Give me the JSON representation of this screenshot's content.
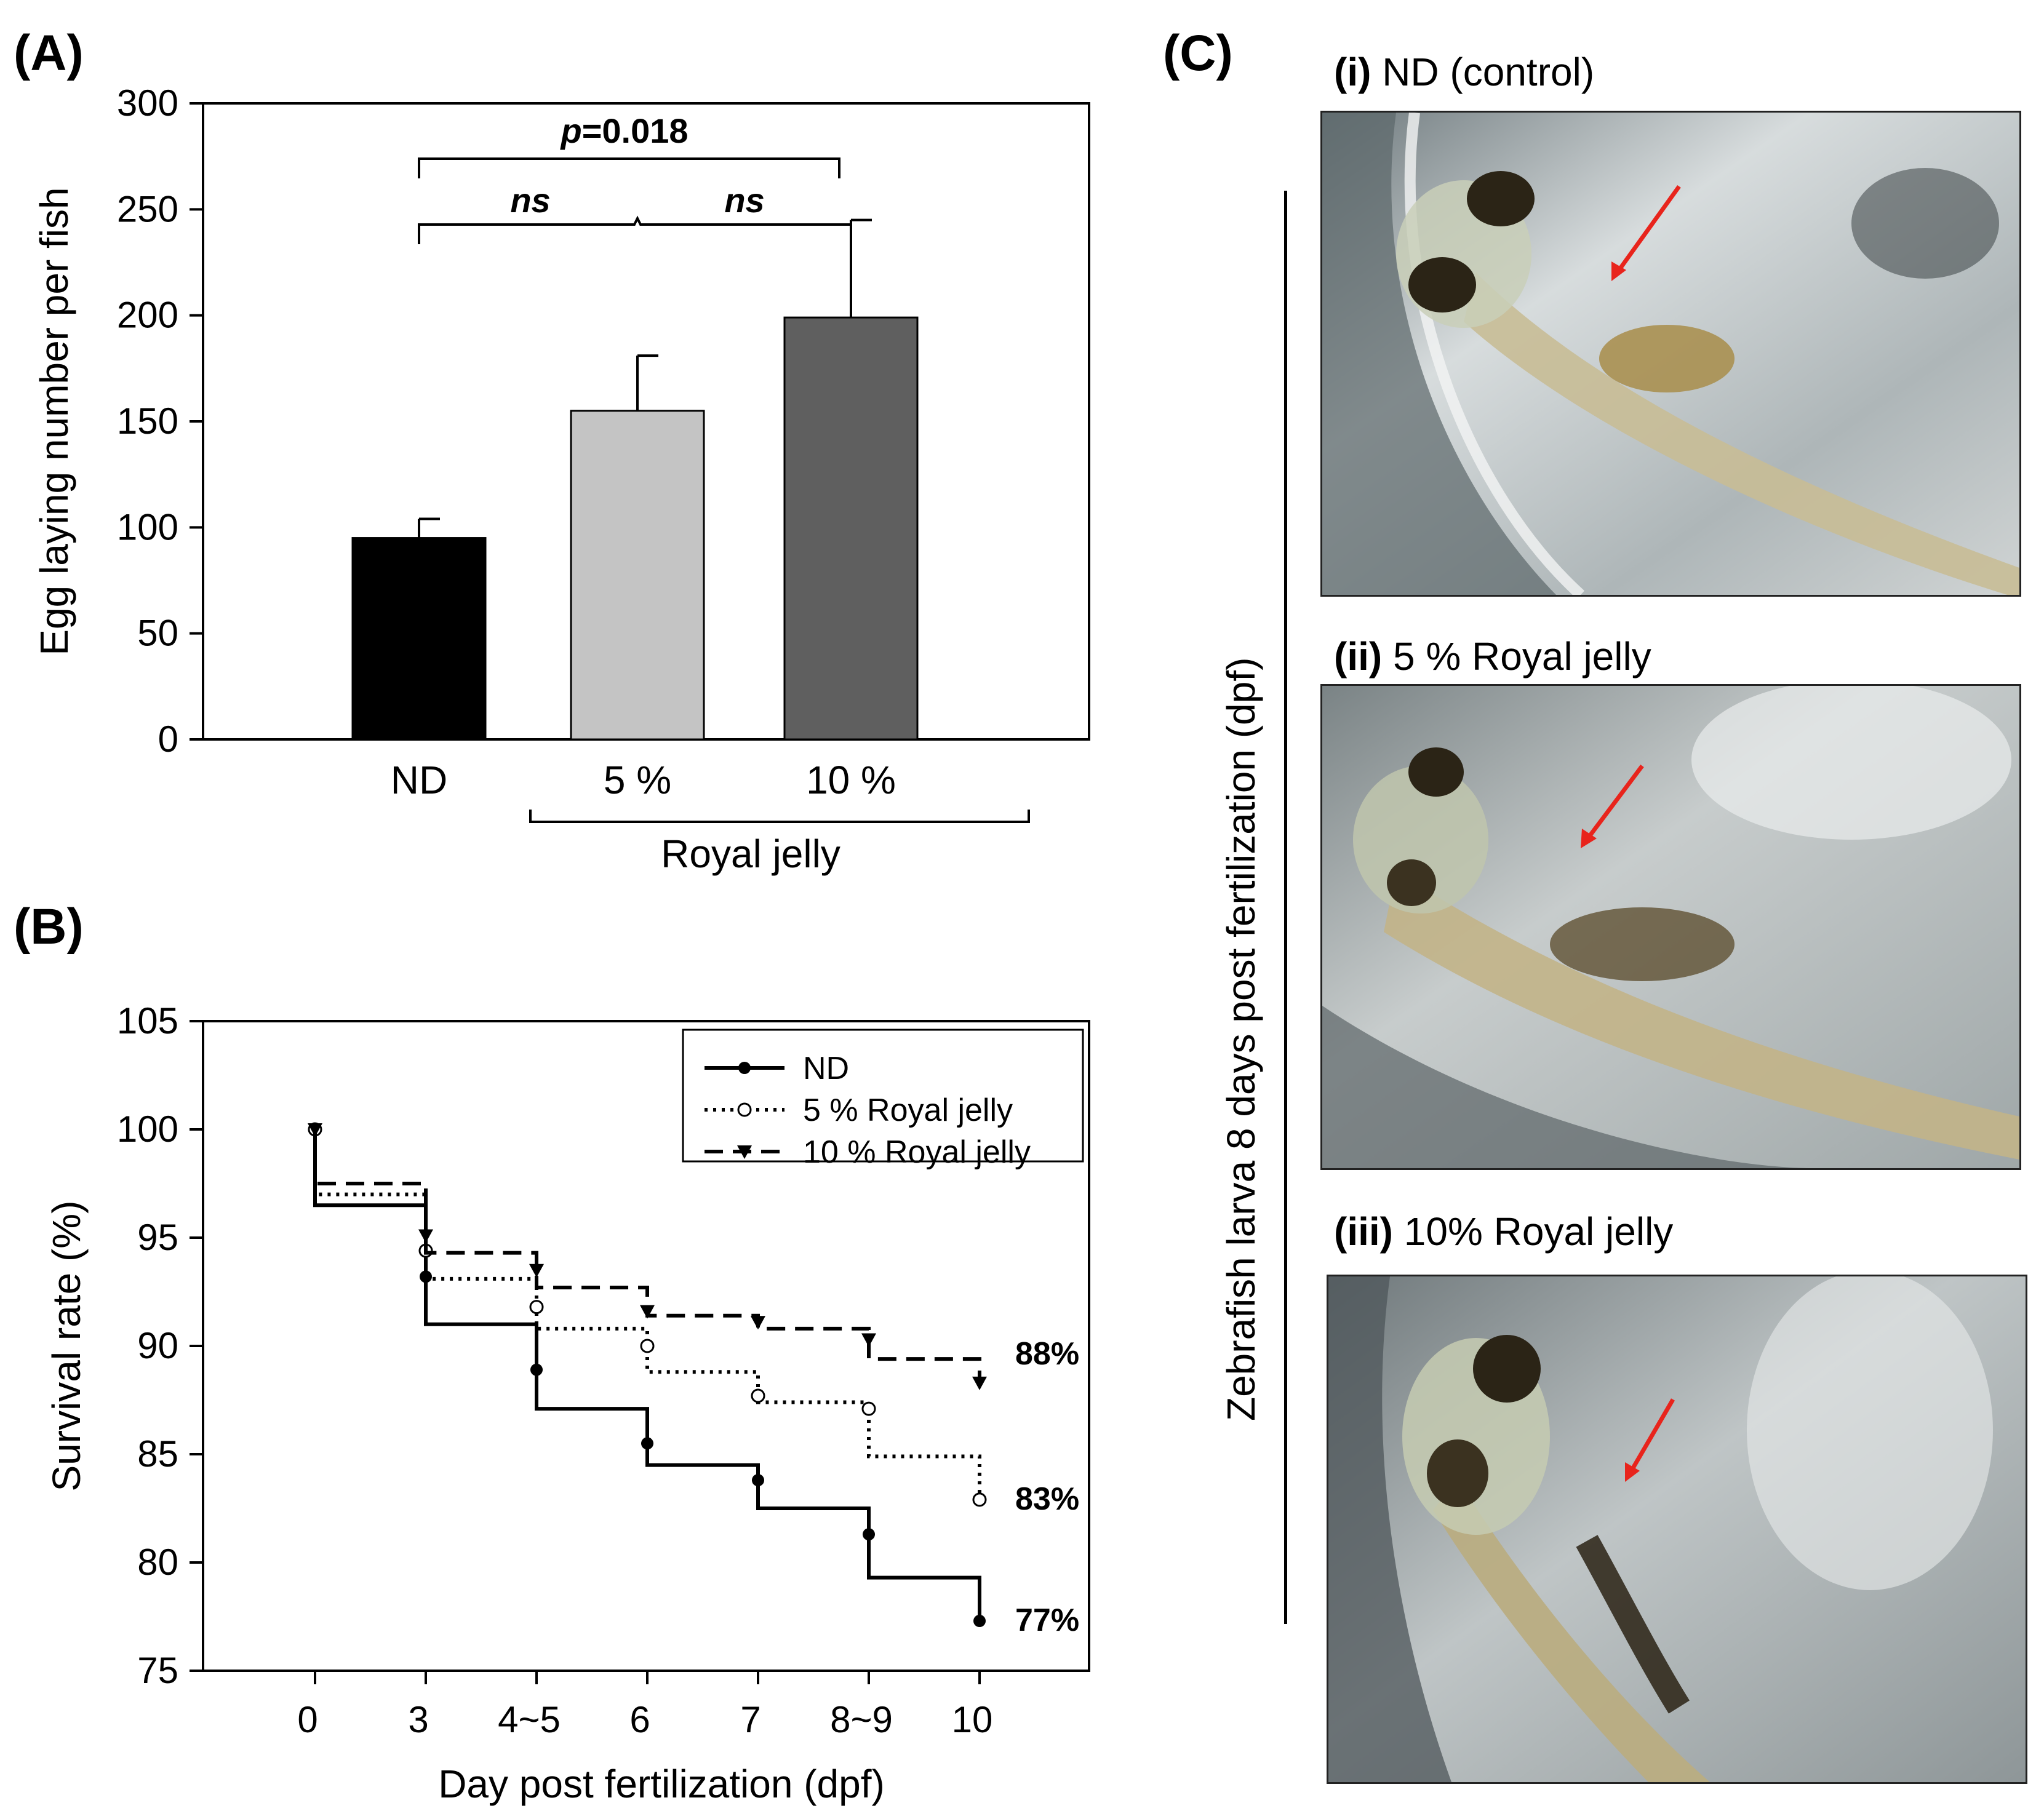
{
  "figure": {
    "panel_a_label": "(A)",
    "panel_b_label": "(B)",
    "panel_c_label": "(C)"
  },
  "chart_data": [
    {
      "id": "A",
      "type": "bar",
      "ylabel": "Egg laying number per fish",
      "ylim": [
        0,
        300
      ],
      "yticks": [
        "0",
        "50",
        "100",
        "150",
        "200",
        "250",
        "300"
      ],
      "ytick_values": [
        0,
        50,
        100,
        150,
        200,
        250,
        300
      ],
      "categories": [
        "ND",
        "5 %",
        "10 %"
      ],
      "values": [
        95,
        155,
        199
      ],
      "errors": [
        9,
        26,
        46
      ],
      "colors": [
        "#000000",
        "#c4c4c4",
        "#5f5f5f"
      ],
      "group_label": "Royal jelly",
      "annotations": {
        "ns_left": "ns",
        "ns_right": "ns",
        "p_prefix": "p",
        "p_value": "=0.018"
      }
    },
    {
      "id": "B",
      "type": "line",
      "xlabel": "Day post fertilization (dpf)",
      "ylabel": "Survival rate (%)",
      "ylim": [
        75,
        105
      ],
      "yticks": [
        "75",
        "80",
        "85",
        "90",
        "95",
        "100",
        "105"
      ],
      "ytick_values": [
        75,
        80,
        85,
        90,
        95,
        100,
        105
      ],
      "x_labels": [
        "0",
        "3",
        "4~5",
        "6",
        "7",
        "8~9",
        "10"
      ],
      "series": [
        {
          "name": "ND",
          "style": "solid",
          "marker": "filled-circle",
          "steps": [
            96.5,
            91.0,
            87.1,
            84.5,
            82.5,
            79.3
          ],
          "points": [
            100,
            93.2,
            88.9,
            85.5,
            83.8,
            81.3,
            77.3
          ],
          "end_label": "77%"
        },
        {
          "name": "5 % Royal jelly",
          "style": "dotted",
          "marker": "open-circle",
          "steps": [
            97.0,
            93.1,
            90.8,
            88.8,
            87.4,
            84.9
          ],
          "points": [
            100,
            94.4,
            91.8,
            90.0,
            87.7,
            87.1,
            82.9
          ],
          "end_label": "83%"
        },
        {
          "name": "10 % Royal jelly",
          "style": "dashed",
          "marker": "filled-triangle-down",
          "steps": [
            97.5,
            94.3,
            92.7,
            91.4,
            90.8,
            89.4
          ],
          "points": [
            100,
            95.1,
            93.5,
            91.6,
            91.1,
            90.3,
            88.3
          ],
          "end_label": "88%"
        }
      ]
    }
  ],
  "panel_c": {
    "side_label": "Zebrafish larva 8 days post fertilization (dpf)",
    "photos": [
      {
        "numeral": "(i)",
        "caption": "ND (control)"
      },
      {
        "numeral": "(ii)",
        "caption": "5 % Royal jelly"
      },
      {
        "numeral": "(iii)",
        "caption": "10% Royal jelly"
      }
    ]
  },
  "colors": {
    "arrow": "#e8241c"
  }
}
